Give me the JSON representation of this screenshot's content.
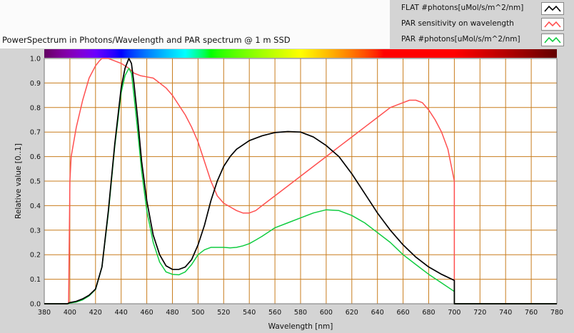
{
  "chart_data": {
    "type": "line",
    "title": "PowerSpectrum in Photons/Wavelength and PAR spectrum @ 1 m SSD",
    "xlabel": "Wavelength [nm]",
    "ylabel": "Relative value [0..1]",
    "xlim": [
      380,
      780
    ],
    "ylim": [
      0.0,
      1.0
    ],
    "xticks": [
      "380",
      "400",
      "420",
      "440",
      "460",
      "480",
      "500",
      "520",
      "540",
      "560",
      "580",
      "600",
      "620",
      "640",
      "660",
      "680",
      "700",
      "720",
      "740",
      "760",
      "780"
    ],
    "yticks": [
      "0.0",
      "0.1",
      "0.2",
      "0.3",
      "0.4",
      "0.5",
      "0.6",
      "0.7",
      "0.8",
      "0.9",
      "1.0"
    ],
    "grid": true,
    "legend_position": "top-right",
    "series": [
      {
        "name": "FLAT #photons[uMol/s/m^2/nm]",
        "color": "#000000",
        "x": [
          380,
          398,
          400,
          405,
          410,
          415,
          420,
          425,
          430,
          435,
          440,
          443,
          446,
          448,
          450,
          453,
          456,
          460,
          465,
          470,
          475,
          480,
          485,
          490,
          495,
          500,
          505,
          510,
          515,
          520,
          525,
          530,
          540,
          550,
          560,
          570,
          580,
          590,
          600,
          610,
          620,
          630,
          640,
          650,
          660,
          670,
          680,
          690,
          700,
          700,
          720,
          740,
          760,
          780
        ],
        "y": [
          0,
          0,
          0.005,
          0.01,
          0.02,
          0.035,
          0.06,
          0.15,
          0.38,
          0.65,
          0.88,
          0.96,
          1.0,
          0.98,
          0.9,
          0.75,
          0.58,
          0.42,
          0.28,
          0.2,
          0.155,
          0.14,
          0.14,
          0.15,
          0.18,
          0.24,
          0.32,
          0.42,
          0.5,
          0.56,
          0.6,
          0.63,
          0.665,
          0.685,
          0.698,
          0.702,
          0.7,
          0.68,
          0.645,
          0.6,
          0.53,
          0.45,
          0.37,
          0.3,
          0.24,
          0.19,
          0.15,
          0.12,
          0.095,
          0,
          0,
          0,
          0,
          0
        ]
      },
      {
        "name": "PAR sensitivity on wavelength",
        "color": "#ff5050",
        "x": [
          380,
          399,
          400,
          401,
          405,
          410,
          415,
          420,
          423,
          425,
          430,
          435,
          440,
          443,
          446,
          448,
          450,
          455,
          460,
          465,
          470,
          475,
          480,
          485,
          490,
          495,
          500,
          505,
          510,
          515,
          520,
          525,
          530,
          535,
          540,
          545,
          550,
          560,
          570,
          580,
          590,
          600,
          610,
          620,
          630,
          640,
          650,
          660,
          665,
          670,
          675,
          680,
          685,
          690,
          695,
          700,
          700,
          720,
          740,
          760,
          780
        ],
        "y": [
          0,
          0,
          0.5,
          0.6,
          0.72,
          0.83,
          0.92,
          0.97,
          0.99,
          1.0,
          1.0,
          0.99,
          0.98,
          0.97,
          0.96,
          0.95,
          0.94,
          0.93,
          0.925,
          0.92,
          0.9,
          0.88,
          0.85,
          0.81,
          0.77,
          0.72,
          0.66,
          0.58,
          0.5,
          0.44,
          0.41,
          0.395,
          0.38,
          0.37,
          0.37,
          0.38,
          0.4,
          0.44,
          0.48,
          0.52,
          0.56,
          0.6,
          0.64,
          0.68,
          0.72,
          0.76,
          0.8,
          0.82,
          0.83,
          0.83,
          0.82,
          0.79,
          0.75,
          0.7,
          0.63,
          0.5,
          0,
          0,
          0,
          0,
          0
        ]
      },
      {
        "name": "PAR #photons[uMol/s/m^2/nm]",
        "color": "#10cc40",
        "x": [
          380,
          399,
          400,
          405,
          410,
          415,
          420,
          425,
          430,
          435,
          440,
          443,
          446,
          448,
          450,
          453,
          456,
          460,
          465,
          470,
          475,
          480,
          485,
          490,
          495,
          500,
          505,
          510,
          515,
          520,
          525,
          530,
          535,
          540,
          545,
          550,
          560,
          570,
          580,
          590,
          600,
          610,
          620,
          630,
          640,
          650,
          660,
          670,
          680,
          690,
          700,
          700,
          720,
          740,
          760,
          780
        ],
        "y": [
          0,
          0,
          0.003,
          0.007,
          0.016,
          0.032,
          0.058,
          0.15,
          0.37,
          0.64,
          0.86,
          0.93,
          0.96,
          0.94,
          0.85,
          0.7,
          0.54,
          0.38,
          0.25,
          0.17,
          0.13,
          0.12,
          0.118,
          0.13,
          0.16,
          0.2,
          0.22,
          0.23,
          0.23,
          0.23,
          0.228,
          0.23,
          0.236,
          0.245,
          0.26,
          0.275,
          0.31,
          0.33,
          0.35,
          0.37,
          0.383,
          0.38,
          0.36,
          0.33,
          0.29,
          0.25,
          0.2,
          0.16,
          0.12,
          0.085,
          0.05,
          0,
          0,
          0,
          0,
          0
        ]
      }
    ]
  },
  "legend_icons": [
    "line-black-icon",
    "line-red-icon",
    "line-green-icon"
  ]
}
